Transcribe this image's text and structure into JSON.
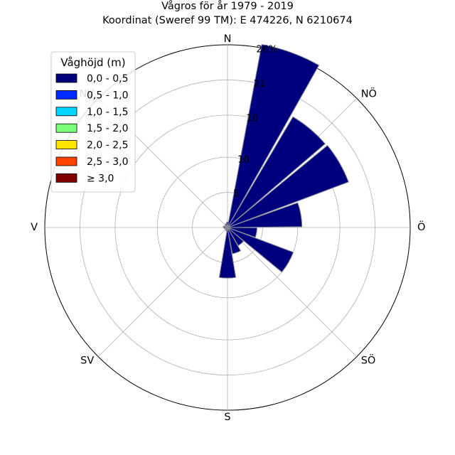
{
  "chart_data": {
    "type": "windrose",
    "title": "Vågros för år 1979 - 2019",
    "subtitle": "Koordinat (Sweref 99 TM): E 474226, N 6210674",
    "directions": [
      {
        "label": "N",
        "angle": 0
      },
      {
        "label": "NÖ",
        "angle": 45
      },
      {
        "label": "Ö",
        "angle": 90
      },
      {
        "label": "SÖ",
        "angle": 135
      },
      {
        "label": "S",
        "angle": 180
      },
      {
        "label": "SV",
        "angle": 225
      },
      {
        "label": "V",
        "angle": 270
      },
      {
        "label": "NV",
        "angle": 315
      }
    ],
    "radial_ticks": [
      {
        "value": 5,
        "label": "5"
      },
      {
        "value": 10,
        "label": "10"
      },
      {
        "value": 16,
        "label": "16"
      },
      {
        "value": 21,
        "label": "21"
      },
      {
        "value": 26,
        "label": "26%"
      }
    ],
    "r_max": 26,
    "legend": {
      "title": "Våghöjd (m)",
      "placement": "top-left",
      "bins": [
        {
          "label": "0,0 - 0,5",
          "color": "#00007f"
        },
        {
          "label": "0,5 - 1,0",
          "color": "#0028ff"
        },
        {
          "label": "1,0 - 1,5",
          "color": "#00d4ff"
        },
        {
          "label": "1,5 - 2,0",
          "color": "#7bff7b"
        },
        {
          "label": "2,0 - 2,5",
          "color": "#ffe500"
        },
        {
          "label": "2,5 - 3,0",
          "color": "#ff4400"
        },
        {
          "label": "≥ 3,0",
          "color": "#7f0000"
        }
      ]
    },
    "sector_width_deg": 20,
    "sectors": [
      {
        "direction_deg": 20,
        "values": [
          26.5,
          0,
          0,
          0,
          0,
          0,
          0
        ]
      },
      {
        "direction_deg": 40,
        "values": [
          18.3,
          0,
          0,
          0,
          0,
          0,
          0
        ]
      },
      {
        "direction_deg": 60,
        "values": [
          18.4,
          0,
          0,
          0,
          0,
          0,
          0
        ]
      },
      {
        "direction_deg": 80,
        "values": [
          10.6,
          0,
          0,
          0,
          0,
          0,
          0
        ]
      },
      {
        "direction_deg": 100,
        "values": [
          4.2,
          0,
          0,
          0,
          0,
          0,
          0
        ]
      },
      {
        "direction_deg": 120,
        "values": [
          10.0,
          0,
          0,
          0,
          0,
          0,
          0
        ]
      },
      {
        "direction_deg": 140,
        "values": [
          3.0,
          0,
          0,
          0,
          0,
          0,
          0
        ]
      },
      {
        "direction_deg": 160,
        "values": [
          3.8,
          0,
          0,
          0,
          0,
          0,
          0
        ]
      },
      {
        "direction_deg": 180,
        "values": [
          7.2,
          0,
          0,
          0,
          0,
          0,
          0
        ]
      },
      {
        "direction_deg": 200,
        "values": [
          0.5,
          0,
          0,
          0,
          0,
          0,
          0
        ]
      },
      {
        "direction_deg": 220,
        "values": [
          0.4,
          0,
          0,
          0,
          0,
          0,
          0
        ]
      },
      {
        "direction_deg": 240,
        "values": [
          0.4,
          0,
          0,
          0,
          0,
          0,
          0
        ]
      },
      {
        "direction_deg": 260,
        "values": [
          0.5,
          0,
          0,
          0,
          0,
          0,
          0
        ]
      },
      {
        "direction_deg": 280,
        "values": [
          0.6,
          0,
          0,
          0,
          0,
          0,
          0
        ]
      },
      {
        "direction_deg": 300,
        "values": [
          0.4,
          0,
          0,
          0,
          0,
          0,
          0
        ]
      },
      {
        "direction_deg": 320,
        "values": [
          0.5,
          0,
          0,
          0,
          0,
          0,
          0
        ]
      },
      {
        "direction_deg": 340,
        "values": [
          0.6,
          0,
          0,
          0,
          0,
          0,
          0
        ]
      },
      {
        "direction_deg": 0,
        "values": [
          0.8,
          0,
          0,
          0,
          0,
          0,
          0
        ]
      }
    ]
  }
}
